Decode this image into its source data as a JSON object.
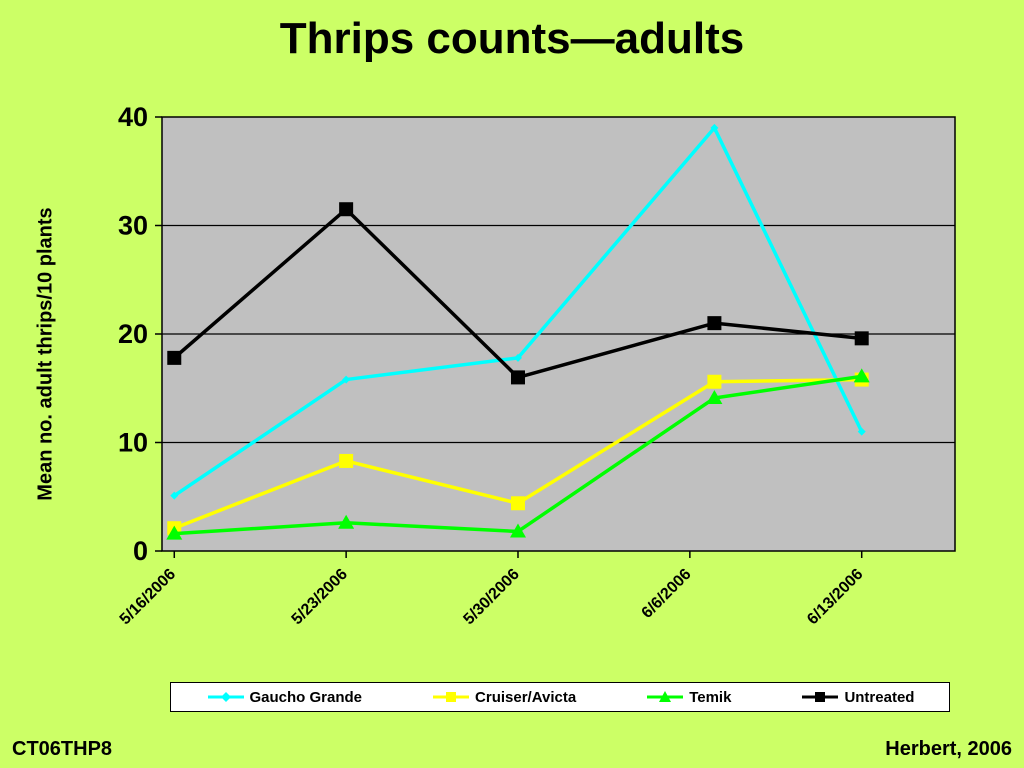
{
  "slide": {
    "title": "Thrips counts—adults",
    "footer_left": "CT06THP8",
    "footer_right": "Herbert, 2006"
  },
  "chart_data": {
    "type": "line",
    "title": "Thrips counts—adults",
    "xlabel": "",
    "ylabel": "Mean no. adult thrips/10 plants",
    "x": [
      "2006-05-16",
      "2006-05-23",
      "2006-05-30",
      "2006-06-07",
      "2006-06-13"
    ],
    "x_tick_labels": [
      "5/16/2006",
      "5/23/2006",
      "5/30/2006",
      "6/6/2006",
      "6/13/2006"
    ],
    "ylim": [
      0,
      40
    ],
    "y_ticks": [
      0,
      10,
      20,
      30,
      40
    ],
    "grid": true,
    "legend_position": "bottom",
    "plot_background": "#c0c0c0",
    "series": [
      {
        "name": "Gaucho Grande",
        "color": "#00ffff",
        "marker": "diamond",
        "values": [
          5.1,
          15.8,
          17.8,
          39,
          11
        ]
      },
      {
        "name": "Cruiser/Avicta",
        "color": "#ffff00",
        "marker": "square",
        "values": [
          2.1,
          8.3,
          4.4,
          15.6,
          15.8
        ]
      },
      {
        "name": "Temik",
        "color": "#00ff00",
        "marker": "triangle",
        "values": [
          1.6,
          2.6,
          1.8,
          14.1,
          16.1
        ]
      },
      {
        "name": "Untreated",
        "color": "#000000",
        "marker": "square",
        "values": [
          17.8,
          31.5,
          16,
          21,
          19.6
        ]
      }
    ]
  }
}
